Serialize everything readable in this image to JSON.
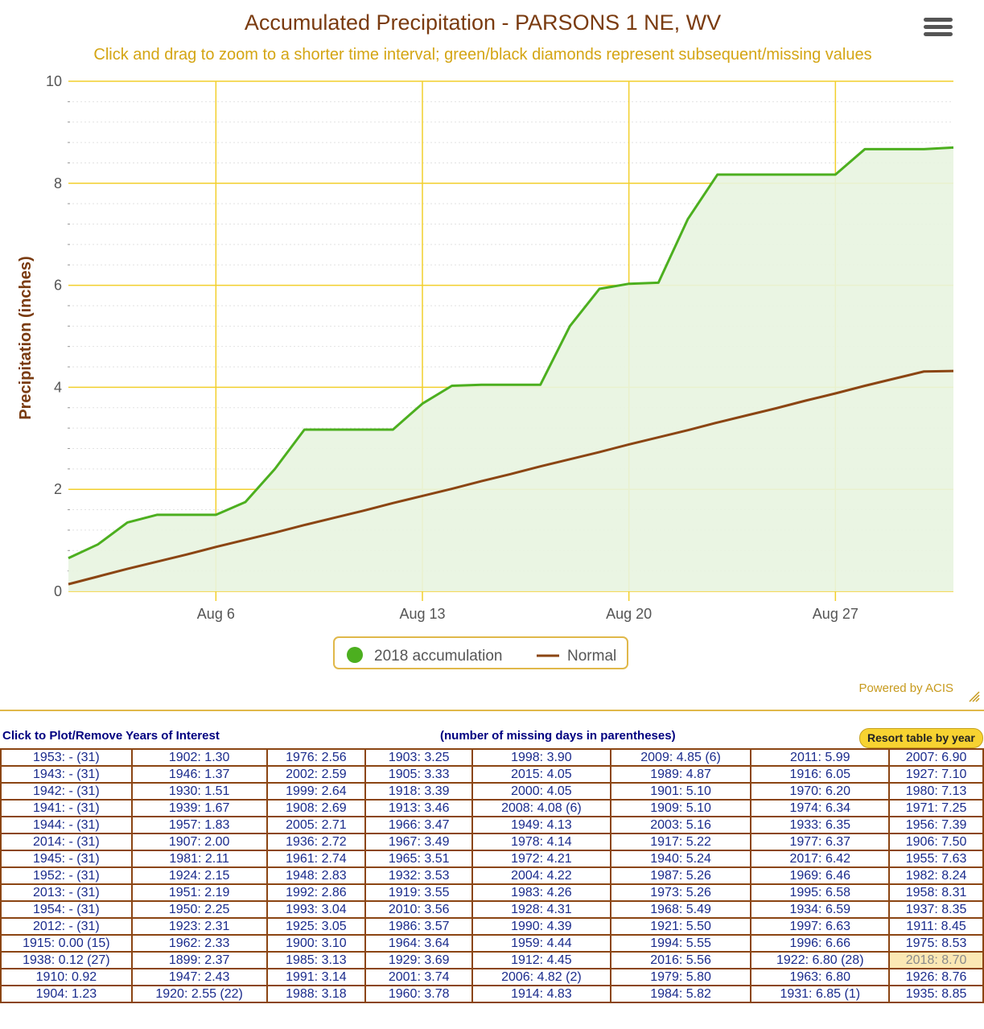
{
  "chart": {
    "title": "Accumulated Precipitation - PARSONS 1 NE, WV",
    "subtitle": "Click and drag to zoom to a shorter time interval; green/black diamonds represent subsequent/missing values",
    "ylabel": "Precipitation (inches)",
    "credit": "Powered by ACIS",
    "x_ticks": [
      "Aug 6",
      "Aug 13",
      "Aug 20",
      "Aug 27"
    ],
    "y_ticks": [
      "0",
      "2",
      "4",
      "6",
      "8",
      "10"
    ],
    "legend": [
      "2018 accumulation",
      "Normal"
    ]
  },
  "chart_data": {
    "type": "area",
    "title": "Accumulated Precipitation - PARSONS 1 NE, WV",
    "ylabel": "Precipitation (inches)",
    "xlim": [
      "Aug 1",
      "Aug 31"
    ],
    "ylim": [
      0,
      10
    ],
    "grid": true,
    "legend_position": "bottom-center",
    "x": [
      "Aug 1",
      "Aug 2",
      "Aug 3",
      "Aug 4",
      "Aug 5",
      "Aug 6",
      "Aug 7",
      "Aug 8",
      "Aug 9",
      "Aug 10",
      "Aug 11",
      "Aug 12",
      "Aug 13",
      "Aug 14",
      "Aug 15",
      "Aug 16",
      "Aug 17",
      "Aug 18",
      "Aug 19",
      "Aug 20",
      "Aug 21",
      "Aug 22",
      "Aug 23",
      "Aug 24",
      "Aug 25",
      "Aug 26",
      "Aug 27",
      "Aug 28",
      "Aug 29",
      "Aug 30",
      "Aug 31"
    ],
    "series": [
      {
        "name": "2018 accumulation",
        "color": "#4caf1f",
        "fill": "#e8f4e0",
        "values": [
          0.65,
          0.92,
          1.35,
          1.5,
          1.5,
          1.5,
          1.75,
          2.4,
          3.17,
          3.17,
          3.17,
          3.17,
          3.68,
          4.03,
          4.05,
          4.05,
          4.05,
          5.2,
          5.93,
          6.03,
          6.05,
          7.3,
          8.17,
          8.17,
          8.17,
          8.17,
          8.17,
          8.67,
          8.67,
          8.67,
          8.7
        ]
      },
      {
        "name": "Normal",
        "color": "#8b4513",
        "values": [
          0.14,
          0.29,
          0.44,
          0.58,
          0.72,
          0.87,
          1.01,
          1.15,
          1.3,
          1.44,
          1.58,
          1.73,
          1.87,
          2.01,
          2.16,
          2.3,
          2.45,
          2.59,
          2.73,
          2.88,
          3.02,
          3.16,
          3.31,
          3.45,
          3.59,
          3.74,
          3.88,
          4.03,
          4.17,
          4.31,
          4.32
        ]
      }
    ]
  },
  "table": {
    "header_left": "Click to Plot/Remove Years of Interest",
    "header_mid": "(number of missing days in parentheses)",
    "resort_label": "Resort table by year",
    "selected": "2018: 8.70",
    "rows": [
      [
        "1953: - (31)",
        "1902: 1.30",
        "1976: 2.56",
        "1903: 3.25",
        "1998: 3.90",
        "2009: 4.85 (6)",
        "2011: 5.99",
        "2007: 6.90"
      ],
      [
        "1943: - (31)",
        "1946: 1.37",
        "2002: 2.59",
        "1905: 3.33",
        "2015: 4.05",
        "1989: 4.87",
        "1916: 6.05",
        "1927: 7.10"
      ],
      [
        "1942: - (31)",
        "1930: 1.51",
        "1999: 2.64",
        "1918: 3.39",
        "2000: 4.05",
        "1901: 5.10",
        "1970: 6.20",
        "1980: 7.13"
      ],
      [
        "1941: - (31)",
        "1939: 1.67",
        "1908: 2.69",
        "1913: 3.46",
        "2008: 4.08 (6)",
        "1909: 5.10",
        "1974: 6.34",
        "1971: 7.25"
      ],
      [
        "1944: - (31)",
        "1957: 1.83",
        "2005: 2.71",
        "1966: 3.47",
        "1949: 4.13",
        "2003: 5.16",
        "1933: 6.35",
        "1956: 7.39"
      ],
      [
        "2014: - (31)",
        "1907: 2.00",
        "1936: 2.72",
        "1967: 3.49",
        "1978: 4.14",
        "1917: 5.22",
        "1977: 6.37",
        "1906: 7.50"
      ],
      [
        "1945: - (31)",
        "1981: 2.11",
        "1961: 2.74",
        "1965: 3.51",
        "1972: 4.21",
        "1940: 5.24",
        "2017: 6.42",
        "1955: 7.63"
      ],
      [
        "1952: - (31)",
        "1924: 2.15",
        "1948: 2.83",
        "1932: 3.53",
        "2004: 4.22",
        "1987: 5.26",
        "1969: 6.46",
        "1982: 8.24"
      ],
      [
        "2013: - (31)",
        "1951: 2.19",
        "1992: 2.86",
        "1919: 3.55",
        "1983: 4.26",
        "1973: 5.26",
        "1995: 6.58",
        "1958: 8.31"
      ],
      [
        "1954: - (31)",
        "1950: 2.25",
        "1993: 3.04",
        "2010: 3.56",
        "1928: 4.31",
        "1968: 5.49",
        "1934: 6.59",
        "1937: 8.35"
      ],
      [
        "2012: - (31)",
        "1923: 2.31",
        "1925: 3.05",
        "1986: 3.57",
        "1990: 4.39",
        "1921: 5.50",
        "1997: 6.63",
        "1911: 8.45"
      ],
      [
        "1915: 0.00 (15)",
        "1962: 2.33",
        "1900: 3.10",
        "1964: 3.64",
        "1959: 4.44",
        "1994: 5.55",
        "1996: 6.66",
        "1975: 8.53"
      ],
      [
        "1938: 0.12 (27)",
        "1899: 2.37",
        "1985: 3.13",
        "1929: 3.69",
        "1912: 4.45",
        "2016: 5.56",
        "1922: 6.80 (28)",
        "2018: 8.70"
      ],
      [
        "1910: 0.92",
        "1947: 2.43",
        "1991: 3.14",
        "2001: 3.74",
        "2006: 4.82 (2)",
        "1979: 5.80",
        "1963: 6.80",
        "1926: 8.76"
      ],
      [
        "1904: 1.23",
        "1920: 2.55 (22)",
        "1988: 3.18",
        "1960: 3.78",
        "1914: 4.83",
        "1984: 5.82",
        "1931: 6.85 (1)",
        "1935: 8.85"
      ]
    ]
  }
}
